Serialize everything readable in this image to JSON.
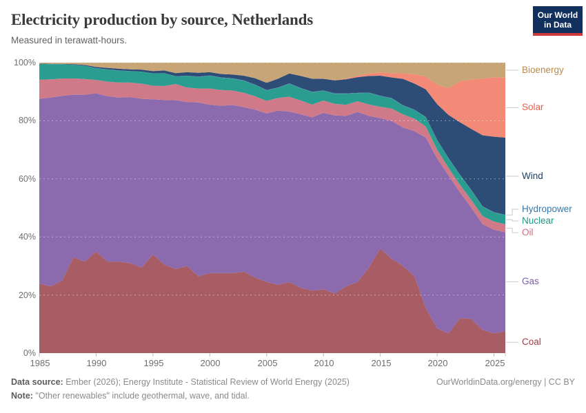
{
  "header": {
    "title": "Electricity production by source, Netherlands",
    "subtitle": "Measured in terawatt-hours.",
    "logo_line1": "Our World",
    "logo_line2": "in Data",
    "logo_bg": "#12305e",
    "logo_bar": "#d0393c"
  },
  "chart_data": {
    "type": "area",
    "stacked": true,
    "normalized_percent": true,
    "title": "Electricity production by source, Netherlands",
    "xlabel": "",
    "ylabel": "Share of electricity production (%)",
    "xlim": [
      1985,
      2026
    ],
    "ylim": [
      0,
      100
    ],
    "grid": "dashed-horizontal",
    "legend_position": "right",
    "x": [
      1985,
      1986,
      1987,
      1988,
      1989,
      1990,
      1991,
      1992,
      1993,
      1994,
      1995,
      1996,
      1997,
      1998,
      1999,
      2000,
      2001,
      2002,
      2003,
      2004,
      2005,
      2006,
      2007,
      2008,
      2009,
      2010,
      2011,
      2012,
      2013,
      2014,
      2015,
      2016,
      2017,
      2018,
      2019,
      2020,
      2021,
      2022,
      2023,
      2024,
      2025,
      2026
    ],
    "x_ticks": [
      1985,
      1990,
      1995,
      2000,
      2005,
      2010,
      2015,
      2020,
      2025
    ],
    "y_ticks_percent": [
      0,
      20,
      40,
      60,
      80,
      100
    ],
    "series": [
      {
        "name": "Coal",
        "color": "#a85c63",
        "label_color": "#a03a47",
        "values": [
          24,
          23,
          25,
          33,
          31.5,
          35,
          31.5,
          31.5,
          31,
          29.5,
          34,
          30.5,
          29,
          30,
          26.5,
          27.5,
          27.5,
          27.5,
          28,
          26,
          24.5,
          23.5,
          24.5,
          22.5,
          21.5,
          22,
          20.5,
          23,
          24.5,
          29.5,
          36,
          32.5,
          30,
          26.5,
          15.5,
          8.5,
          6.8,
          12,
          11.8,
          8,
          6.8,
          7.5
        ]
      },
      {
        "name": "Gas",
        "color": "#8b6bae",
        "label_color": "#7a5dab",
        "values": [
          63.6,
          65.0,
          63.6,
          56.0,
          57.5,
          54.5,
          57.0,
          56.5,
          57.2,
          58.1,
          53.4,
          56.7,
          58.2,
          56.5,
          59.8,
          58.0,
          57.7,
          57.9,
          56.7,
          57.8,
          58.0,
          60.0,
          58.7,
          59.8,
          59.7,
          60.7,
          61.3,
          58.7,
          58.5,
          52.2,
          44.9,
          47.4,
          47.7,
          49.9,
          58.7,
          58.5,
          54.4,
          43.4,
          38.3,
          36.4,
          35.7,
          34.1
        ]
      },
      {
        "name": "Oil",
        "color": "#d07a89",
        "label_color": "#d16a79",
        "values": [
          6.6,
          6.3,
          6.0,
          5.6,
          5.4,
          4.6,
          5.0,
          5.2,
          5.0,
          5.2,
          4.7,
          4.8,
          5.6,
          5.0,
          4.8,
          5.6,
          5.4,
          5.0,
          4.9,
          4.6,
          4.3,
          4.4,
          5.1,
          4.7,
          4.4,
          4.2,
          4.0,
          3.8,
          3.7,
          3.9,
          3.9,
          4.3,
          4.5,
          4.3,
          3.8,
          3.0,
          2.6,
          2.6,
          2.7,
          2.8,
          2.8,
          2.8
        ]
      },
      {
        "name": "Nuclear",
        "color": "#299d90",
        "label_color": "#1f9583",
        "values": [
          5.4,
          5.2,
          4.9,
          4.7,
          4.5,
          4.0,
          4.2,
          4.1,
          3.9,
          4.1,
          4.2,
          4.4,
          2.6,
          4.0,
          4.0,
          4.4,
          4.2,
          4.1,
          4.2,
          3.9,
          3.6,
          3.5,
          4.5,
          4.2,
          4.3,
          3.4,
          3.5,
          3.8,
          2.8,
          4.0,
          3.7,
          3.5,
          3.0,
          3.0,
          3.2,
          3.3,
          3.2,
          3.4,
          3.3,
          3.2,
          3.1,
          3.1
        ]
      },
      {
        "name": "Hydropower",
        "color": "#4f83b8",
        "label_color": "#3677a9",
        "values": [
          0.05,
          0.05,
          0.05,
          0.05,
          0.05,
          0.05,
          0.05,
          0.05,
          0.05,
          0.05,
          0.05,
          0.05,
          0.05,
          0.05,
          0.1,
          0.1,
          0.1,
          0.1,
          0.1,
          0.1,
          0.1,
          0.1,
          0.1,
          0.1,
          0.1,
          0.1,
          0.1,
          0.1,
          0.1,
          0.1,
          0.1,
          0.1,
          0.1,
          0.1,
          0.1,
          0.1,
          0.1,
          0.1,
          0.1,
          0.12,
          0.12,
          0.12
        ]
      },
      {
        "name": "Wind",
        "color": "#2d4d76",
        "label_color": "#1b3d63",
        "values": [
          0.1,
          0.1,
          0.1,
          0.2,
          0.3,
          0.4,
          0.5,
          0.6,
          0.6,
          0.7,
          0.8,
          0.9,
          1.1,
          1.2,
          1.3,
          1.1,
          1.2,
          1.3,
          1.6,
          2.2,
          2.5,
          3.0,
          3.4,
          4.2,
          4.5,
          4.0,
          4.5,
          4.9,
          5.4,
          5.7,
          6.9,
          7.1,
          9.1,
          9.0,
          9.5,
          12.3,
          14.9,
          18.0,
          21.0,
          24.5,
          26.0,
          26.6
        ]
      },
      {
        "name": "Solar",
        "color": "#f38a78",
        "label_color": "#e8604e",
        "values": [
          0,
          0,
          0,
          0,
          0,
          0,
          0,
          0,
          0,
          0,
          0,
          0,
          0,
          0,
          0,
          0,
          0,
          0,
          0,
          0,
          0.05,
          0.05,
          0.05,
          0.05,
          0.05,
          0.06,
          0.1,
          0.2,
          0.5,
          0.8,
          1.1,
          1.5,
          1.9,
          3.2,
          4.4,
          6.8,
          9.2,
          14.0,
          17.0,
          19.5,
          20.5,
          20.6
        ]
      },
      {
        "name": "Bioenergy",
        "color": "#c7a577",
        "label_color": "#bb8a4c",
        "values": [
          0.3,
          0.4,
          0.4,
          0.5,
          0.8,
          1.5,
          1.8,
          2.1,
          2.3,
          2.4,
          2.9,
          2.7,
          3.6,
          3.3,
          3.5,
          3.3,
          3.9,
          4.1,
          4.5,
          5.4,
          6.9,
          5.5,
          3.7,
          4.5,
          5.5,
          5.5,
          6.0,
          5.5,
          4.5,
          3.8,
          3.4,
          3.6,
          3.7,
          4.0,
          4.8,
          7.5,
          8.8,
          6.5,
          5.8,
          5.5,
          5.0,
          5.2
        ]
      }
    ]
  },
  "axes": {
    "y_labels": [
      "100%",
      "80%",
      "60%",
      "40%",
      "20%",
      "0%"
    ],
    "x_labels": [
      "1985",
      "1990",
      "1995",
      "2000",
      "2005",
      "2010",
      "2015",
      "2020",
      "2025"
    ]
  },
  "footer": {
    "source_label": "Data source:",
    "source_text": " Ember (2026); Energy Institute - Statistical Review of World Energy (2025)",
    "note_label": "Note:",
    "note_text": " \"Other renewables\" include geothermal, wave, and tidal.",
    "right_text": "OurWorldinData.org/energy | CC BY"
  }
}
